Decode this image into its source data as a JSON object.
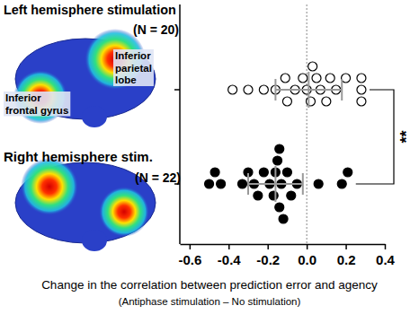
{
  "chart_data": {
    "type": "strip",
    "categories": [
      "Left hemisphere stimulation",
      "Right hemisphere stim."
    ],
    "groups": [
      {
        "n_label": "(N = 20)",
        "marker": "open",
        "color": "#000000",
        "values": [
          -0.38,
          -0.3,
          -0.22,
          -0.16,
          -0.11,
          -0.06,
          -0.02,
          0.0,
          0.02,
          0.05,
          0.07,
          0.1,
          0.12,
          0.15,
          0.2,
          -0.1,
          0.03,
          0.28,
          0.28,
          0.28
        ],
        "mean": 0.01,
        "error": 0.17
      },
      {
        "n_label": "(N = 22)",
        "marker": "filled",
        "color": "#000000",
        "values": [
          -0.5,
          -0.47,
          -0.44,
          -0.33,
          -0.3,
          -0.27,
          -0.25,
          -0.22,
          -0.19,
          -0.17,
          -0.16,
          -0.15,
          -0.14,
          -0.14,
          -0.13,
          -0.12,
          -0.1,
          -0.08,
          -0.05,
          0.06,
          0.18,
          0.21
        ],
        "mean": -0.16,
        "error": 0.14
      }
    ],
    "xlabel": "Change in the correlation between prediction error and agency",
    "xlabel_note": "(Antiphase stimulation – No stimulation)",
    "xlim": [
      -0.65,
      0.4
    ],
    "xticks": [
      -0.6,
      -0.4,
      -0.2,
      {
        "value": 0,
        "label": "0.0"
      },
      0.2,
      0.4
    ],
    "reference_line": 0,
    "annotation": "**",
    "region_labels": [
      "Inferior frontal gyrus",
      "Inferior parietal lobe"
    ],
    "tick_labels": "x"
  }
}
